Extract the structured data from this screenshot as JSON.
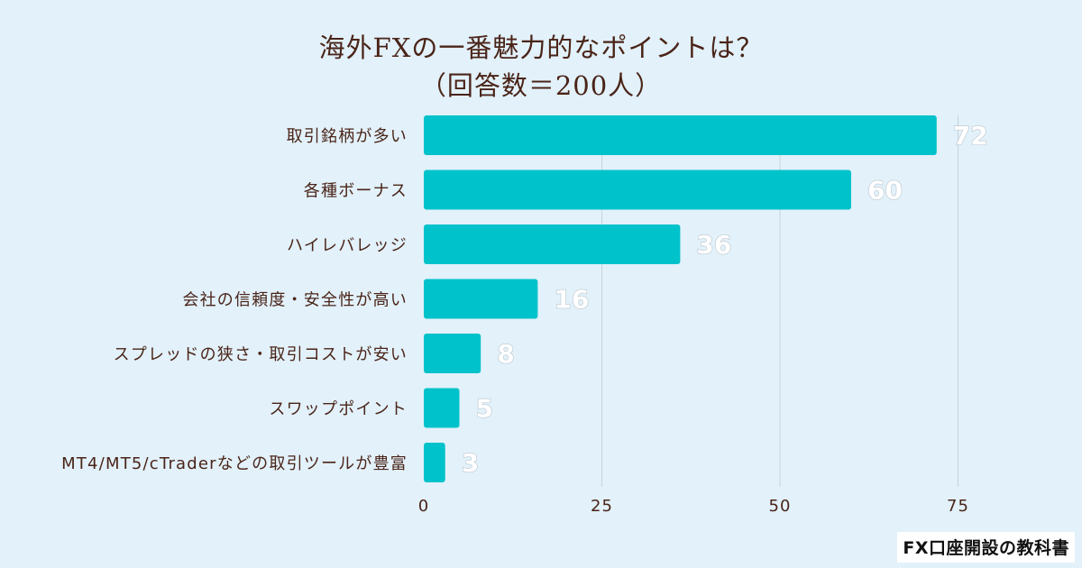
{
  "chart_data": {
    "type": "bar",
    "orientation": "horizontal",
    "title": "海外FXの一番魅力的なポイントは？",
    "subtitle": "（回答数＝200人）",
    "categories": [
      "取引銘柄が多い",
      "各種ボーナス",
      "ハイレバレッジ",
      "会社の信頼度・安全性が高い",
      "スプレッドの狭さ・取引コストが安い",
      "スワップポイント",
      "MT4/MT5/cTraderなどの取引ツールが豊富"
    ],
    "values": [
      72,
      60,
      36,
      16,
      8,
      5,
      3
    ],
    "xlim": [
      0,
      83
    ],
    "xticks": [
      "0",
      "25",
      "50",
      "75"
    ],
    "xtick_values": [
      0,
      25,
      50,
      75
    ],
    "grid": "vertical",
    "legend": "none",
    "colors": {
      "bar": "#00c2cb",
      "background": "#e2f1fa",
      "grid": "#c9d3da",
      "text": "#4a2418",
      "value_label": "#ffffff"
    }
  },
  "watermark": "FX口座開設の教科書"
}
